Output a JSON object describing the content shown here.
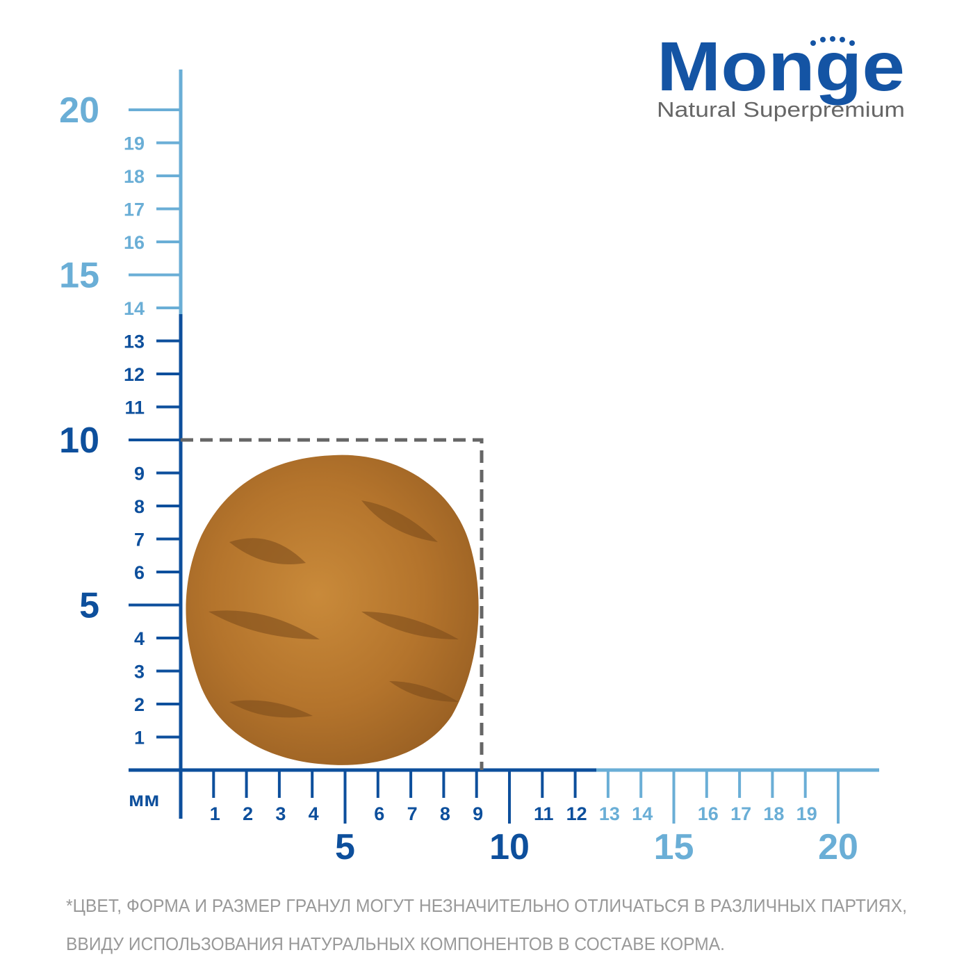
{
  "brand": {
    "name": "Monge",
    "tagline": "Natural Superpremium"
  },
  "ruler": {
    "unit": "мм",
    "y_ticks": [
      1,
      2,
      3,
      4,
      5,
      6,
      7,
      8,
      9,
      10,
      11,
      12,
      13,
      14,
      15,
      16,
      17,
      18,
      19,
      20
    ],
    "x_ticks": [
      1,
      2,
      3,
      4,
      5,
      6,
      7,
      8,
      9,
      10,
      11,
      12,
      13,
      14,
      15,
      16,
      17,
      18,
      19,
      20
    ]
  },
  "footnote": [
    "*ЦВЕТ, ФОРМА И РАЗМЕР ГРАНУЛ МОГУТ НЕЗНАЧИТЕЛЬНО ОТЛИЧАТЬСЯ В РАЗЛИЧНЫХ ПАРТИЯХ,",
    "ВВИДУ ИСПОЛЬЗОВАНИЯ НАТУРАЛЬНЫХ КОМПОНЕНТОВ В СОСТАВЕ КОРМА."
  ]
}
